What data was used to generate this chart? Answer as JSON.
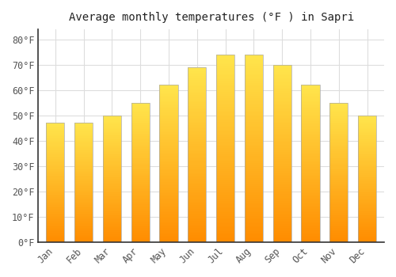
{
  "title": "Average monthly temperatures (°F ) in Sapri",
  "months": [
    "Jan",
    "Feb",
    "Mar",
    "Apr",
    "May",
    "Jun",
    "Jul",
    "Aug",
    "Sep",
    "Oct",
    "Nov",
    "Dec"
  ],
  "values": [
    47,
    47,
    50,
    55,
    62,
    69,
    74,
    74,
    70,
    62,
    55,
    50
  ],
  "bar_color_bottom": "#FFA500",
  "bar_color_top": "#FFE066",
  "bar_edge_color": "#AAAAAA",
  "background_color": "#FFFFFF",
  "grid_color": "#DDDDDD",
  "ylim": [
    0,
    84
  ],
  "yticks": [
    0,
    10,
    20,
    30,
    40,
    50,
    60,
    70,
    80
  ],
  "title_fontsize": 10,
  "tick_fontsize": 8.5,
  "tick_color": "#555555",
  "title_color": "#222222"
}
